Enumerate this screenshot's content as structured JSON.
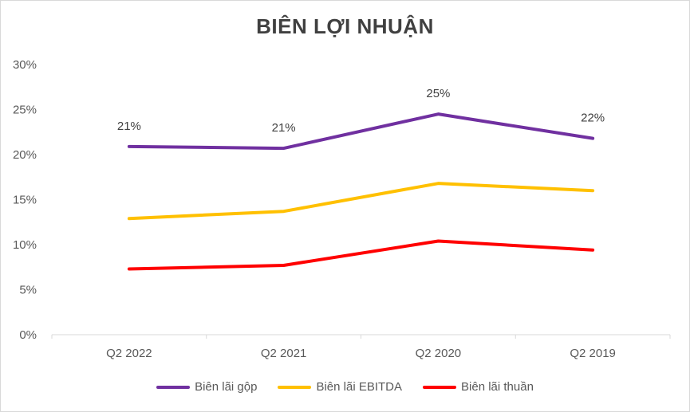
{
  "chart_data": {
    "type": "line",
    "title": "BIÊN LỢI NHUẬN",
    "categories": [
      "Q2 2022",
      "Q2 2021",
      "Q2 2020",
      "Q2 2019"
    ],
    "ylim": [
      0,
      30
    ],
    "yticks": [
      0,
      5,
      10,
      15,
      20,
      25,
      30
    ],
    "ytick_labels": [
      "0%",
      "5%",
      "10%",
      "15%",
      "20%",
      "25%",
      "30%"
    ],
    "xlabel": "",
    "ylabel": "",
    "grid": false,
    "legend_position": "bottom",
    "series": [
      {
        "name": "Biên lãi gộp",
        "color": "#7030a0",
        "values": [
          20.9,
          20.7,
          24.5,
          21.8
        ],
        "data_labels": [
          "21%",
          "21%",
          "25%",
          "22%"
        ]
      },
      {
        "name": "Biên lãi EBITDA",
        "color": "#ffc000",
        "values": [
          12.9,
          13.7,
          16.8,
          16.0
        ]
      },
      {
        "name": "Biên lãi thuần",
        "color": "#ff0000",
        "values": [
          7.3,
          7.7,
          10.4,
          9.4
        ]
      }
    ]
  },
  "axis_color": "#d9d9d9"
}
